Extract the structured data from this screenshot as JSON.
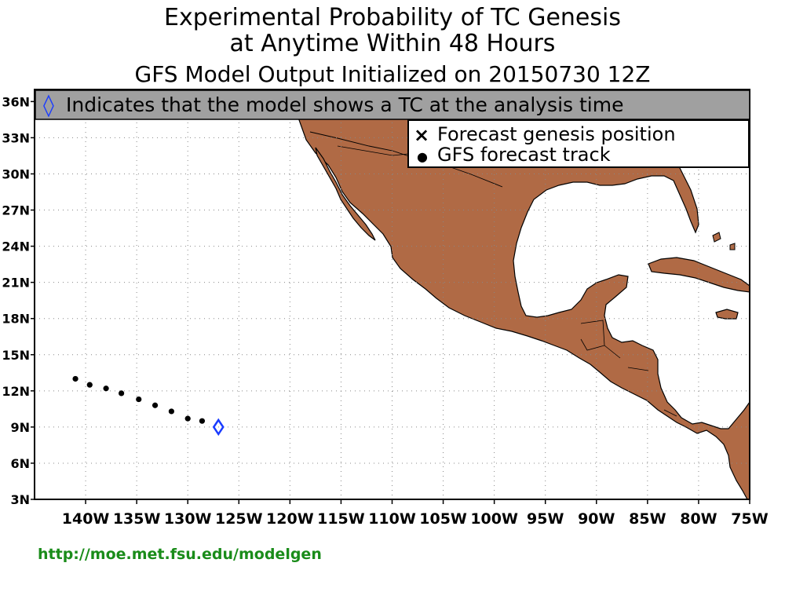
{
  "title": {
    "line1": "Experimental Probability of TC Genesis",
    "line2": "at Anytime Within 48 Hours",
    "line3": "GFS Model Output Initialized on 20150730 12Z"
  },
  "banner": {
    "symbol": "◊",
    "text": "Indicates that the model shows a TC at the analysis time",
    "background": "#a0a0a0",
    "symbol_color": "#1a3cff"
  },
  "legend": {
    "items": [
      {
        "symbol": "×",
        "label": "Forecast genesis position"
      },
      {
        "symbol": "●",
        "label": "GFS forecast track"
      }
    ]
  },
  "map": {
    "land_color": "#b06a45",
    "ocean_color": "#ffffff",
    "lon_range": [
      -145,
      -75
    ],
    "lat_range": [
      3,
      37
    ],
    "grid": true,
    "lat_labels": [
      "36N",
      "33N",
      "30N",
      "27N",
      "24N",
      "21N",
      "18N",
      "15N",
      "12N",
      "9N",
      "6N",
      "3N"
    ],
    "lon_labels": [
      "140W",
      "135W",
      "130W",
      "125W",
      "120W",
      "115W",
      "110W",
      "105W",
      "100W",
      "95W",
      "90W",
      "85W",
      "80W",
      "75W"
    ],
    "track": [
      {
        "lon": -141.0,
        "lat": 13.0
      },
      {
        "lon": -139.6,
        "lat": 12.5
      },
      {
        "lon": -138.0,
        "lat": 12.2
      },
      {
        "lon": -136.5,
        "lat": 11.8
      },
      {
        "lon": -134.8,
        "lat": 11.3
      },
      {
        "lon": -133.2,
        "lat": 10.8
      },
      {
        "lon": -131.6,
        "lat": 10.3
      },
      {
        "lon": -130.0,
        "lat": 9.7
      },
      {
        "lon": -128.6,
        "lat": 9.5
      }
    ],
    "analysis_tc": {
      "lon": -127.0,
      "lat": 9.0
    }
  },
  "footer": {
    "url": "http://moe.met.fsu.edu/modelgen",
    "color": "#1a8c1a"
  }
}
